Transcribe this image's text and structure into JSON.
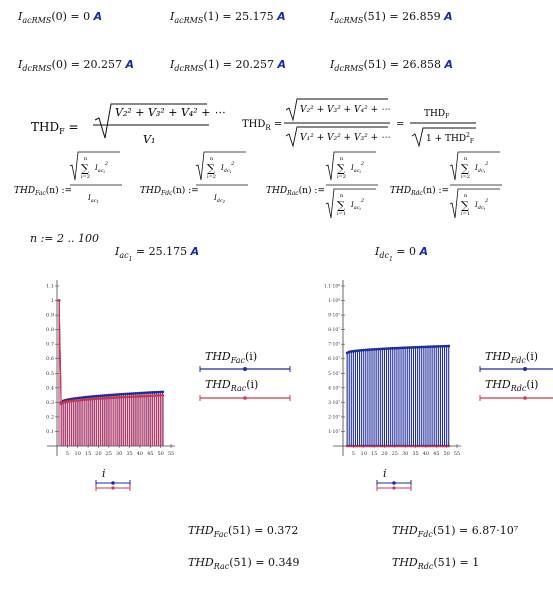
{
  "rms": {
    "r1": [
      {
        "name": "I",
        "sub": "acRMS",
        "arg": "0",
        "val": "0",
        "unit": "A"
      },
      {
        "name": "I",
        "sub": "acRMS",
        "arg": "1",
        "val": "25.175",
        "unit": "A"
      },
      {
        "name": "I",
        "sub": "acRMS",
        "arg": "51",
        "val": "26.859",
        "unit": "A"
      }
    ],
    "r2": [
      {
        "name": "I",
        "sub": "dcRMS",
        "arg": "0",
        "val": "20.257",
        "unit": "A"
      },
      {
        "name": "I",
        "sub": "dcRMS",
        "arg": "1",
        "val": "20.257",
        "unit": "A"
      },
      {
        "name": "I",
        "sub": "dcRMS",
        "arg": "51",
        "val": "26.858",
        "unit": "A"
      }
    ]
  },
  "defs": {
    "thdf_lhs": "THD",
    "thdf_sub": "F",
    "thdr_lhs": "THD",
    "thdr_sub": "R",
    "thdf_num": "V₂² + V₃² + V₄² + ⋯",
    "thdf_den": "V₁",
    "thdr_num": "V₂² + V₃² + V₄² + ⋯",
    "thdr_den": "V₁² + V₂² + V₃² + ⋯",
    "thdr_alt_num": "THD",
    "thdr_alt_den": "1 + THD"
  },
  "funcs": {
    "f1": "THD",
    "f1s": "Fac",
    "f2": "THD",
    "f2s": "Fdc",
    "f3": "THD",
    "f3s": "Rac",
    "f4": "THD",
    "f4s": "Rdc",
    "arg": "(n) :=",
    "sum_top": "n",
    "sum_bot": "i=2",
    "sum_bot1": "i=1",
    "i_ac": "I",
    "i_ac_sub": "ac",
    "i_sub_sub": "i",
    "one_sub": "1",
    "sq": "2",
    "i_dc_sub": "dc"
  },
  "range": {
    "text": "n := 2 .. 100"
  },
  "headers": {
    "left": {
      "name": "I",
      "sub": "ac",
      "subsub": "1",
      "val": "25.175",
      "unit": "A"
    },
    "right": {
      "name": "I",
      "sub": "dc",
      "subsub": "1",
      "val": "0",
      "unit": "A"
    }
  },
  "legends": {
    "left": [
      {
        "label": "THD",
        "sub": "Fac",
        "arg": "(i)"
      },
      {
        "label": "THD",
        "sub": "Rac",
        "arg": "(i)"
      }
    ],
    "right": [
      {
        "label": "THD",
        "sub": "Fdc",
        "arg": "(i)"
      },
      {
        "label": "THD",
        "sub": "Rdc",
        "arg": "(i)"
      }
    ],
    "x_var": "i"
  },
  "colors": {
    "blue": "#1f2d9c",
    "red": "#d1374f",
    "purple": "#8a2f7a",
    "unit": "#1a2aa6"
  },
  "results": {
    "fac": {
      "label": "THD",
      "sub": "Fac",
      "arg": "(51)",
      "val": "0.372"
    },
    "rac": {
      "label": "THD",
      "sub": "Rac",
      "arg": "(51)",
      "val": "0.349"
    },
    "fdc": {
      "label": "THD",
      "sub": "Fdc",
      "arg": "(51)",
      "val": "6.87·10⁷"
    },
    "rdc": {
      "label": "THD",
      "sub": "Rdc",
      "arg": "(51)",
      "val": "1"
    }
  },
  "chart_data": [
    {
      "type": "bar",
      "x_ticks": [
        5,
        10,
        15,
        20,
        25,
        30,
        35,
        40,
        45,
        50,
        55
      ],
      "y_ticks": [
        "0.1",
        "0.2",
        "0.3",
        "0.4",
        "0.5",
        "0.6",
        "0.7",
        "0.8",
        "0.9",
        "1",
        "1.1"
      ],
      "ylim": [
        0,
        1.1
      ],
      "xlim": [
        0,
        55
      ],
      "series": [
        {
          "name": "THD_Fac(i)",
          "color": "#1f2d9c",
          "x_start": 2,
          "x_end": 51,
          "start_value": 0.3,
          "end_value": 0.372,
          "spike_x": 1,
          "spike_value": 1.0
        },
        {
          "name": "THD_Rac(i)",
          "color": "#d1374f",
          "x_start": 2,
          "x_end": 51,
          "start_value": 0.29,
          "end_value": 0.349,
          "spike_x": 1,
          "spike_value": 1.0
        }
      ]
    },
    {
      "type": "bar",
      "x_ticks": [
        5,
        10,
        15,
        20,
        25,
        30,
        35,
        40,
        45,
        50,
        55
      ],
      "y_ticks": [
        "1·10⁷",
        "2·10⁷",
        "3·10⁷",
        "4·10⁷",
        "5·10⁷",
        "6·10⁷",
        "7·10⁷",
        "8·10⁷",
        "9·10⁷",
        "1·10⁸",
        "1.1·10⁸"
      ],
      "ylim": [
        0,
        110000000
      ],
      "xlim": [
        0,
        55
      ],
      "series": [
        {
          "name": "THD_Fdc(i)",
          "color": "#1f2d9c",
          "x_start": 2,
          "x_end": 51,
          "start_value": 64000000,
          "end_value": 68700000
        },
        {
          "name": "THD_Rdc(i)",
          "color": "#d1374f",
          "x_start": 2,
          "x_end": 51,
          "start_value": 1,
          "end_value": 1
        }
      ]
    }
  ]
}
